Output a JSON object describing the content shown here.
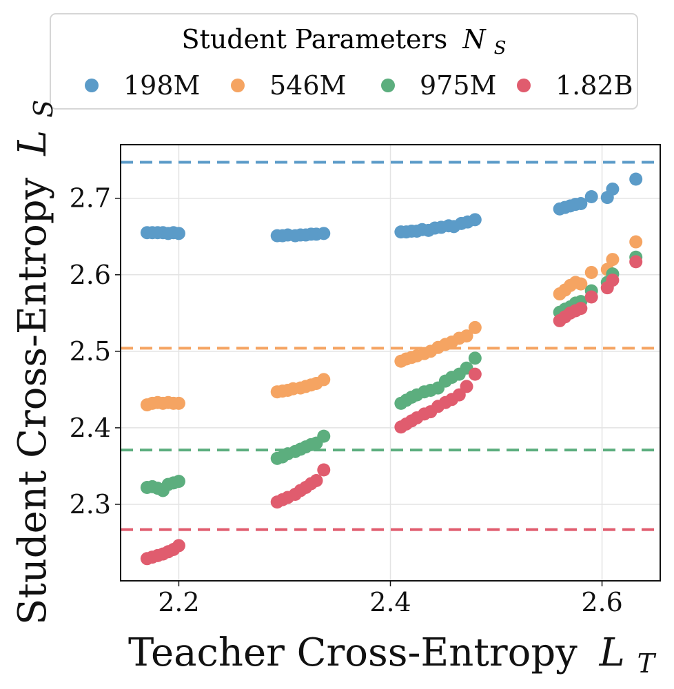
{
  "chart_data": {
    "type": "scatter",
    "title": "",
    "xlabel": "Teacher Cross-Entropy",
    "xlabel_symbol": "L",
    "xlabel_subscript": "T",
    "ylabel": "Student Cross-Entropy",
    "ylabel_symbol": "L",
    "ylabel_subscript": "S",
    "xlim": [
      2.145,
      2.655
    ],
    "ylim": [
      2.2,
      2.77
    ],
    "xticks": [
      "2.2",
      "2.4",
      "2.6"
    ],
    "yticks": [
      "2.3",
      "2.4",
      "2.5",
      "2.6",
      "2.7"
    ],
    "grid": true,
    "legend": {
      "title": "Student Parameters",
      "title_symbol": "N",
      "title_subscript": "S",
      "placement": "top, above plot",
      "entries": [
        "198M",
        "546M",
        "975M",
        "1.82B"
      ]
    },
    "series": [
      {
        "name": "198M",
        "color": "#5B9BC8",
        "baseline": 2.747,
        "points": [
          [
            2.17,
            2.655
          ],
          [
            2.175,
            2.655
          ],
          [
            2.18,
            2.655
          ],
          [
            2.185,
            2.655
          ],
          [
            2.19,
            2.654
          ],
          [
            2.195,
            2.655
          ],
          [
            2.2,
            2.654
          ],
          [
            2.293,
            2.651
          ],
          [
            2.298,
            2.651
          ],
          [
            2.303,
            2.652
          ],
          [
            2.31,
            2.651
          ],
          [
            2.315,
            2.652
          ],
          [
            2.32,
            2.652
          ],
          [
            2.325,
            2.653
          ],
          [
            2.33,
            2.653
          ],
          [
            2.337,
            2.654
          ],
          [
            2.41,
            2.656
          ],
          [
            2.415,
            2.656
          ],
          [
            2.42,
            2.657
          ],
          [
            2.425,
            2.657
          ],
          [
            2.43,
            2.659
          ],
          [
            2.436,
            2.658
          ],
          [
            2.442,
            2.661
          ],
          [
            2.448,
            2.662
          ],
          [
            2.455,
            2.664
          ],
          [
            2.46,
            2.663
          ],
          [
            2.467,
            2.667
          ],
          [
            2.473,
            2.669
          ],
          [
            2.48,
            2.672
          ],
          [
            2.56,
            2.686
          ],
          [
            2.565,
            2.688
          ],
          [
            2.57,
            2.69
          ],
          [
            2.575,
            2.692
          ],
          [
            2.58,
            2.693
          ],
          [
            2.59,
            2.702
          ],
          [
            2.605,
            2.701
          ],
          [
            2.61,
            2.712
          ],
          [
            2.632,
            2.725
          ]
        ]
      },
      {
        "name": "546M",
        "color": "#F5A462",
        "baseline": 2.504,
        "points": [
          [
            2.17,
            2.43
          ],
          [
            2.175,
            2.432
          ],
          [
            2.18,
            2.433
          ],
          [
            2.185,
            2.432
          ],
          [
            2.19,
            2.433
          ],
          [
            2.195,
            2.432
          ],
          [
            2.2,
            2.432
          ],
          [
            2.293,
            2.447
          ],
          [
            2.298,
            2.448
          ],
          [
            2.303,
            2.449
          ],
          [
            2.308,
            2.451
          ],
          [
            2.315,
            2.452
          ],
          [
            2.32,
            2.454
          ],
          [
            2.325,
            2.456
          ],
          [
            2.33,
            2.458
          ],
          [
            2.337,
            2.463
          ],
          [
            2.41,
            2.487
          ],
          [
            2.415,
            2.49
          ],
          [
            2.42,
            2.492
          ],
          [
            2.425,
            2.494
          ],
          [
            2.432,
            2.497
          ],
          [
            2.438,
            2.5
          ],
          [
            2.445,
            2.505
          ],
          [
            2.452,
            2.509
          ],
          [
            2.458,
            2.512
          ],
          [
            2.465,
            2.517
          ],
          [
            2.472,
            2.52
          ],
          [
            2.48,
            2.531
          ],
          [
            2.56,
            2.575
          ],
          [
            2.565,
            2.58
          ],
          [
            2.57,
            2.586
          ],
          [
            2.575,
            2.59
          ],
          [
            2.58,
            2.588
          ],
          [
            2.59,
            2.603
          ],
          [
            2.605,
            2.607
          ],
          [
            2.61,
            2.62
          ],
          [
            2.632,
            2.643
          ]
        ]
      },
      {
        "name": "975M",
        "color": "#5CAE7E",
        "baseline": 2.371,
        "points": [
          [
            2.17,
            2.322
          ],
          [
            2.175,
            2.323
          ],
          [
            2.18,
            2.321
          ],
          [
            2.185,
            2.318
          ],
          [
            2.19,
            2.326
          ],
          [
            2.195,
            2.328
          ],
          [
            2.2,
            2.33
          ],
          [
            2.293,
            2.36
          ],
          [
            2.298,
            2.362
          ],
          [
            2.303,
            2.366
          ],
          [
            2.31,
            2.369
          ],
          [
            2.315,
            2.372
          ],
          [
            2.32,
            2.375
          ],
          [
            2.325,
            2.378
          ],
          [
            2.33,
            2.38
          ],
          [
            2.337,
            2.389
          ],
          [
            2.41,
            2.432
          ],
          [
            2.415,
            2.436
          ],
          [
            2.42,
            2.44
          ],
          [
            2.425,
            2.443
          ],
          [
            2.432,
            2.447
          ],
          [
            2.438,
            2.449
          ],
          [
            2.445,
            2.452
          ],
          [
            2.452,
            2.461
          ],
          [
            2.458,
            2.466
          ],
          [
            2.465,
            2.47
          ],
          [
            2.472,
            2.478
          ],
          [
            2.48,
            2.491
          ],
          [
            2.56,
            2.551
          ],
          [
            2.565,
            2.555
          ],
          [
            2.57,
            2.558
          ],
          [
            2.575,
            2.563
          ],
          [
            2.58,
            2.565
          ],
          [
            2.59,
            2.579
          ],
          [
            2.605,
            2.59
          ],
          [
            2.61,
            2.601
          ],
          [
            2.632,
            2.623
          ]
        ]
      },
      {
        "name": "1.82B",
        "color": "#E05C6E",
        "baseline": 2.267,
        "points": [
          [
            2.17,
            2.229
          ],
          [
            2.175,
            2.231
          ],
          [
            2.18,
            2.233
          ],
          [
            2.185,
            2.235
          ],
          [
            2.19,
            2.238
          ],
          [
            2.195,
            2.241
          ],
          [
            2.2,
            2.246
          ],
          [
            2.293,
            2.303
          ],
          [
            2.298,
            2.306
          ],
          [
            2.303,
            2.309
          ],
          [
            2.31,
            2.313
          ],
          [
            2.315,
            2.318
          ],
          [
            2.32,
            2.322
          ],
          [
            2.325,
            2.327
          ],
          [
            2.33,
            2.331
          ],
          [
            2.337,
            2.345
          ],
          [
            2.41,
            2.401
          ],
          [
            2.415,
            2.405
          ],
          [
            2.42,
            2.409
          ],
          [
            2.425,
            2.413
          ],
          [
            2.432,
            2.418
          ],
          [
            2.438,
            2.421
          ],
          [
            2.445,
            2.428
          ],
          [
            2.452,
            2.433
          ],
          [
            2.458,
            2.437
          ],
          [
            2.465,
            2.443
          ],
          [
            2.472,
            2.454
          ],
          [
            2.48,
            2.47
          ],
          [
            2.56,
            2.54
          ],
          [
            2.565,
            2.545
          ],
          [
            2.57,
            2.55
          ],
          [
            2.575,
            2.553
          ],
          [
            2.58,
            2.556
          ],
          [
            2.59,
            2.571
          ],
          [
            2.605,
            2.583
          ],
          [
            2.61,
            2.593
          ],
          [
            2.632,
            2.617
          ]
        ]
      }
    ]
  }
}
